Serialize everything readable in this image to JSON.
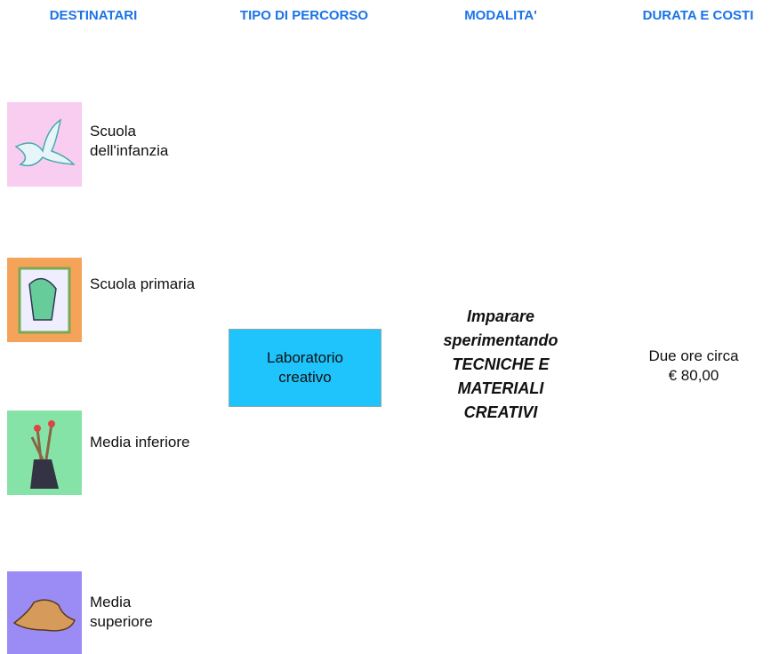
{
  "header": {
    "columns": [
      "DESTINATARI",
      "TIPO DI PERCORSO",
      "MODALITA'",
      "DURATA E COSTI"
    ]
  },
  "recipients": [
    "Scuola dell'infanzia",
    "Scuola primaria",
    "Media inferiore",
    "Media superiore"
  ],
  "path_type": "Laboratorio creativo",
  "mode": {
    "intro": "Imparare sperimentando",
    "topic": "TECNICHE E MATERIALI CREATIVI"
  },
  "duration": {
    "time": "Due ore circa",
    "cost": "€ 80,00"
  }
}
